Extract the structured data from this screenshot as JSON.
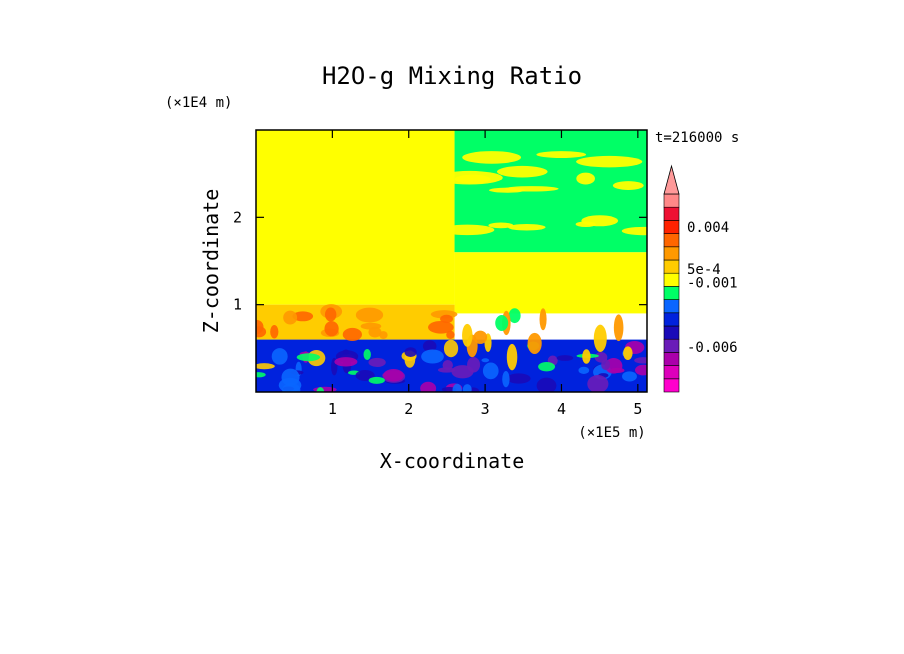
{
  "chart_data": {
    "type": "heatmap",
    "title": "H2O-g Mixing Ratio",
    "xlabel": "X-coordinate",
    "ylabel": "Z-coordinate",
    "x_scale_label": "(×1E5 m)",
    "y_scale_label": "(×1E4 m)",
    "time_label": "t=216000 s",
    "xlim": [
      0,
      5.12
    ],
    "ylim": [
      0,
      3.0
    ],
    "x_ticks": [
      1,
      2,
      3,
      4,
      5
    ],
    "y_ticks": [
      1,
      2
    ],
    "colorbar": {
      "bins": [
        {
          "color": "#ff00cc"
        },
        {
          "color": "#dd00bb"
        },
        {
          "color": "#aa00aa"
        },
        {
          "color": "#6a1cb8"
        },
        {
          "color": "#1a0ab8"
        },
        {
          "color": "#0022dd"
        },
        {
          "color": "#0a66ff"
        },
        {
          "color": "#00ff66"
        },
        {
          "color": "#ffff00"
        },
        {
          "color": "#ffcc00"
        },
        {
          "color": "#ff9900"
        },
        {
          "color": "#ff6600"
        },
        {
          "color": "#ff2200"
        },
        {
          "color": "#ee1133"
        },
        {
          "color": "#ff8888"
        }
      ],
      "extend_top_color": "#ff9999",
      "labels": [
        {
          "text": "0.004",
          "bin_index": 12.5
        },
        {
          "text": "5e-4",
          "bin_index": 9.3
        },
        {
          "text": "-0.001",
          "bin_index": 8.3
        },
        {
          "text": "-0.006",
          "bin_index": 3.4
        }
      ]
    },
    "regions": [
      {
        "description": "upper domain",
        "x": [
          0,
          2.6
        ],
        "z": [
          1.0,
          3.0
        ],
        "color": "#ffff00"
      },
      {
        "description": "upper domain right",
        "x": [
          2.6,
          5.12
        ],
        "z": [
          1.6,
          3.0
        ],
        "color": "#00ff66"
      },
      {
        "description": "mid right",
        "x": [
          2.6,
          5.12
        ],
        "z": [
          0.9,
          1.6
        ],
        "color": "#ffff00"
      },
      {
        "description": "mid-left orange band",
        "x": [
          0,
          2.6
        ],
        "z": [
          0.6,
          1.0
        ],
        "color": "#ffcc00"
      },
      {
        "description": "lower blue layer",
        "x": [
          0,
          5.12
        ],
        "z": [
          0,
          0.6
        ],
        "color": "#0022dd"
      }
    ]
  }
}
